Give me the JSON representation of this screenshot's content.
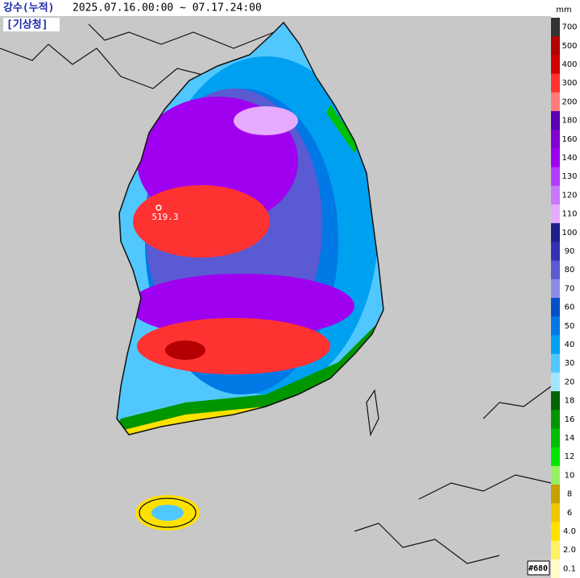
{
  "header": {
    "title": "강수(누적)",
    "period": "2025.07.16.00:00 ~ 07.17.24:00",
    "agency": "[기상청]"
  },
  "legend": {
    "unit": "mm",
    "levels": [
      700,
      500,
      400,
      300,
      200,
      180,
      160,
      140,
      130,
      120,
      110,
      100,
      90,
      80,
      70,
      60,
      50,
      40,
      30,
      20,
      18,
      16,
      14,
      12,
      10,
      8,
      6,
      {
        "value": 4,
        "label": "4.0"
      },
      {
        "value": 2,
        "label": "2.0"
      },
      0.1
    ],
    "colors": [
      "#333333",
      "#b40000",
      "#d20000",
      "#ff3232",
      "#ff7a7a",
      "#5a00b4",
      "#8200d2",
      "#a000f0",
      "#b43cff",
      "#c878ff",
      "#e6aaff",
      "#1e1e8c",
      "#3232b4",
      "#5a5ad2",
      "#8c8ce6",
      "#0050c8",
      "#0078e6",
      "#00a0f0",
      "#50c8ff",
      "#a0e6ff",
      "#006400",
      "#009600",
      "#00be00",
      "#00e600",
      "#96f064",
      "#c8a000",
      "#f0c800",
      "#ffe100",
      "#fff064",
      "#fffac8"
    ]
  },
  "map": {
    "max_value": 519.3,
    "frame_id": "#680"
  }
}
